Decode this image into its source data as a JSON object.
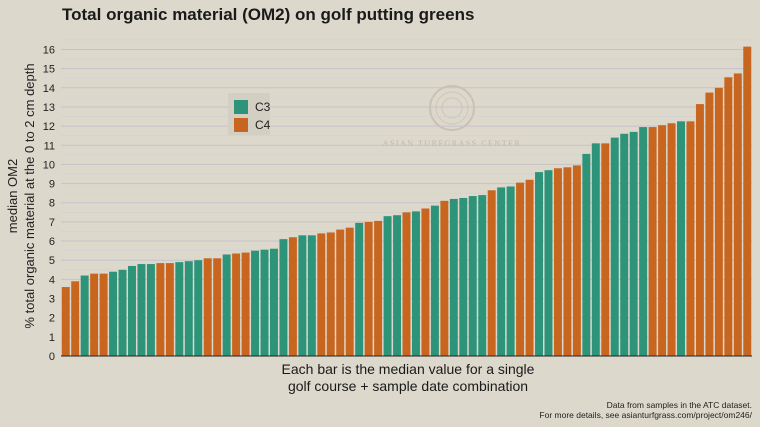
{
  "chart_data": {
    "type": "bar",
    "title": "Total organic material (OM2) on golf putting greens",
    "ylabel_line1": "median OM2",
    "ylabel_line2": "% total organic material at the 0 to 2 cm depth",
    "xlabel_line1": "Each bar is the median value for a single",
    "xlabel_line2": "golf course + sample date combination",
    "ylim": [
      0,
      16.6
    ],
    "yticks": [
      0,
      1,
      2,
      3,
      4,
      5,
      6,
      7,
      8,
      9,
      10,
      11,
      12,
      13,
      14,
      15,
      16
    ],
    "grid": true,
    "legend_position": "upper-left",
    "series": [
      {
        "name": "C3",
        "color": "#2e9479"
      },
      {
        "name": "C4",
        "color": "#c8651f"
      }
    ],
    "bars": [
      {
        "value": 3.6,
        "series": "C4"
      },
      {
        "value": 3.9,
        "series": "C4"
      },
      {
        "value": 4.2,
        "series": "C3"
      },
      {
        "value": 4.3,
        "series": "C4"
      },
      {
        "value": 4.3,
        "series": "C4"
      },
      {
        "value": 4.4,
        "series": "C3"
      },
      {
        "value": 4.5,
        "series": "C3"
      },
      {
        "value": 4.7,
        "series": "C3"
      },
      {
        "value": 4.8,
        "series": "C3"
      },
      {
        "value": 4.8,
        "series": "C3"
      },
      {
        "value": 4.85,
        "series": "C4"
      },
      {
        "value": 4.85,
        "series": "C4"
      },
      {
        "value": 4.9,
        "series": "C3"
      },
      {
        "value": 4.95,
        "series": "C3"
      },
      {
        "value": 5.0,
        "series": "C3"
      },
      {
        "value": 5.1,
        "series": "C4"
      },
      {
        "value": 5.1,
        "series": "C4"
      },
      {
        "value": 5.3,
        "series": "C3"
      },
      {
        "value": 5.35,
        "series": "C4"
      },
      {
        "value": 5.4,
        "series": "C4"
      },
      {
        "value": 5.5,
        "series": "C3"
      },
      {
        "value": 5.55,
        "series": "C3"
      },
      {
        "value": 5.6,
        "series": "C3"
      },
      {
        "value": 6.1,
        "series": "C3"
      },
      {
        "value": 6.2,
        "series": "C4"
      },
      {
        "value": 6.3,
        "series": "C3"
      },
      {
        "value": 6.3,
        "series": "C3"
      },
      {
        "value": 6.4,
        "series": "C4"
      },
      {
        "value": 6.45,
        "series": "C4"
      },
      {
        "value": 6.6,
        "series": "C4"
      },
      {
        "value": 6.7,
        "series": "C4"
      },
      {
        "value": 6.95,
        "series": "C3"
      },
      {
        "value": 7.0,
        "series": "C4"
      },
      {
        "value": 7.05,
        "series": "C4"
      },
      {
        "value": 7.3,
        "series": "C3"
      },
      {
        "value": 7.35,
        "series": "C3"
      },
      {
        "value": 7.5,
        "series": "C4"
      },
      {
        "value": 7.55,
        "series": "C3"
      },
      {
        "value": 7.7,
        "series": "C4"
      },
      {
        "value": 7.85,
        "series": "C3"
      },
      {
        "value": 8.1,
        "series": "C4"
      },
      {
        "value": 8.2,
        "series": "C3"
      },
      {
        "value": 8.25,
        "series": "C3"
      },
      {
        "value": 8.35,
        "series": "C3"
      },
      {
        "value": 8.4,
        "series": "C3"
      },
      {
        "value": 8.65,
        "series": "C4"
      },
      {
        "value": 8.8,
        "series": "C3"
      },
      {
        "value": 8.85,
        "series": "C3"
      },
      {
        "value": 9.05,
        "series": "C4"
      },
      {
        "value": 9.2,
        "series": "C4"
      },
      {
        "value": 9.6,
        "series": "C3"
      },
      {
        "value": 9.7,
        "series": "C3"
      },
      {
        "value": 9.8,
        "series": "C4"
      },
      {
        "value": 9.85,
        "series": "C4"
      },
      {
        "value": 9.95,
        "series": "C4"
      },
      {
        "value": 10.55,
        "series": "C3"
      },
      {
        "value": 11.1,
        "series": "C3"
      },
      {
        "value": 11.1,
        "series": "C4"
      },
      {
        "value": 11.4,
        "series": "C3"
      },
      {
        "value": 11.6,
        "series": "C3"
      },
      {
        "value": 11.7,
        "series": "C3"
      },
      {
        "value": 11.95,
        "series": "C3"
      },
      {
        "value": 11.95,
        "series": "C4"
      },
      {
        "value": 12.05,
        "series": "C4"
      },
      {
        "value": 12.15,
        "series": "C4"
      },
      {
        "value": 12.25,
        "series": "C3"
      },
      {
        "value": 12.25,
        "series": "C4"
      },
      {
        "value": 13.15,
        "series": "C4"
      },
      {
        "value": 13.75,
        "series": "C4"
      },
      {
        "value": 14.0,
        "series": "C4"
      },
      {
        "value": 14.55,
        "series": "C4"
      },
      {
        "value": 14.75,
        "series": "C4"
      },
      {
        "value": 16.15,
        "series": "C4"
      }
    ]
  },
  "watermark": {
    "text": "ASIAN TURFGRASS CENTER"
  },
  "footnote": {
    "line1": "Data from samples in the ATC dataset.",
    "line2": "For more details, see asianturfgrass.com/project/om246/"
  }
}
